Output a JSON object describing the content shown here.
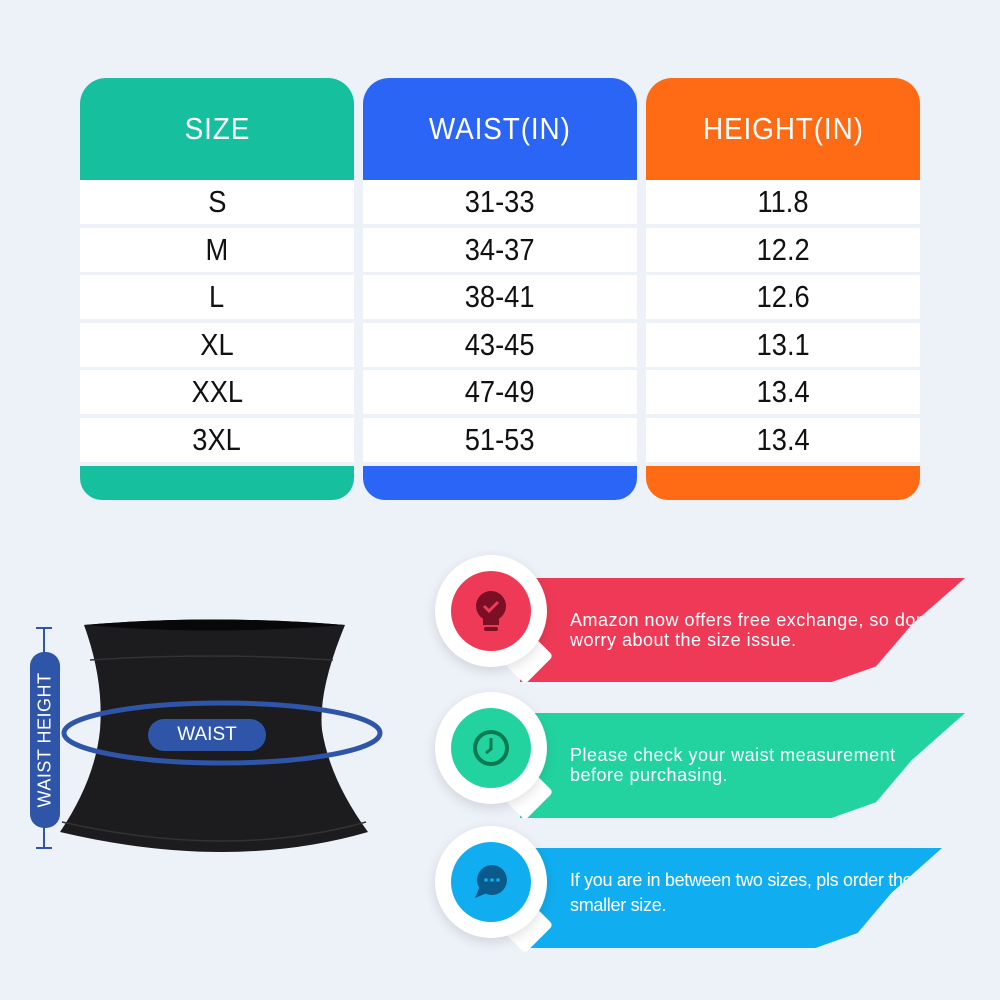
{
  "colors": {
    "size": "#16bf9d",
    "waist": "#2a65f5",
    "height": "#ff6b14",
    "background": "#edf1f8",
    "tip1": "#ef3a57",
    "tip2": "#22d3a0",
    "tip3": "#10aef0",
    "belt_label": "#2e55a8"
  },
  "table": {
    "headers": [
      "SIZE",
      "WAIST(IN)",
      "HEIGHT(IN)"
    ],
    "rows": [
      [
        "S",
        "31-33",
        "11.8"
      ],
      [
        "M",
        "34-37",
        "12.2"
      ],
      [
        "L",
        "38-41",
        "12.6"
      ],
      [
        "XL",
        "43-45",
        "13.1"
      ],
      [
        "XXL",
        "47-49",
        "13.4"
      ],
      [
        "3XL",
        "51-53",
        "13.4"
      ]
    ]
  },
  "diagram": {
    "waist_label": "WAIST",
    "height_label": "WAIST HEIGHT"
  },
  "tips": [
    {
      "icon": "lightbulb-check-icon",
      "text": "Amazon now offers free exchange, so don't worry about the size issue."
    },
    {
      "icon": "clock-icon",
      "text": "Please check your waist measurement before purchasing."
    },
    {
      "icon": "chat-bubble-icon",
      "text": "If you are in between two sizes, pls order the smaller size."
    }
  ]
}
